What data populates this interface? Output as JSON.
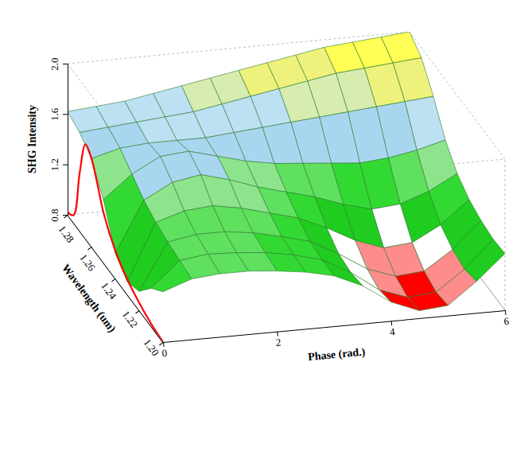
{
  "chart_data": {
    "type": "surface3d",
    "x_label": "Phase (rad.)",
    "y_label": "Wavelength (um)",
    "z_label": "SHG Intensity",
    "x": [
      0,
      0.5,
      1,
      1.5,
      2,
      2.5,
      3,
      3.5,
      4,
      4.5,
      5,
      5.5,
      6
    ],
    "y": [
      1.2,
      1.21,
      1.22,
      1.23,
      1.24,
      1.25,
      1.26,
      1.27,
      1.28
    ],
    "z": [
      [
        1.2,
        1.28,
        1.3,
        1.3,
        1.28,
        1.25,
        1.2,
        1.1,
        0.95,
        0.86,
        0.88,
        1.05,
        1.25
      ],
      [
        1.1,
        1.3,
        1.33,
        1.32,
        1.3,
        1.26,
        1.2,
        1.08,
        0.92,
        0.84,
        0.86,
        1.02,
        1.24
      ],
      [
        0.95,
        1.32,
        1.36,
        1.36,
        1.33,
        1.28,
        1.22,
        1.1,
        0.96,
        0.88,
        0.9,
        1.05,
        1.26
      ],
      [
        0.9,
        1.35,
        1.42,
        1.44,
        1.4,
        1.34,
        1.28,
        1.18,
        1.06,
        0.98,
        1.0,
        1.12,
        1.3
      ],
      [
        1.0,
        1.4,
        1.52,
        1.56,
        1.5,
        1.42,
        1.36,
        1.3,
        1.22,
        1.16,
        1.18,
        1.26,
        1.38
      ],
      [
        1.3,
        1.48,
        1.6,
        1.62,
        1.56,
        1.5,
        1.46,
        1.44,
        1.42,
        1.4,
        1.42,
        1.46,
        1.52
      ],
      [
        1.5,
        1.56,
        1.58,
        1.58,
        1.58,
        1.6,
        1.62,
        1.64,
        1.66,
        1.68,
        1.7,
        1.72,
        1.74
      ],
      [
        1.58,
        1.6,
        1.62,
        1.64,
        1.66,
        1.7,
        1.74,
        1.78,
        1.82,
        1.86,
        1.88,
        1.9,
        1.92
      ],
      [
        1.62,
        1.64,
        1.66,
        1.7,
        1.74,
        1.78,
        1.82,
        1.86,
        1.9,
        1.94,
        1.96,
        1.98,
        2.0
      ]
    ],
    "xlim": [
      0,
      6
    ],
    "xticks": [
      0,
      2,
      4,
      6
    ],
    "ylim": [
      1.2,
      1.28
    ],
    "yticks": [
      {
        "value": 1.2,
        "label": "1.20"
      },
      1.22,
      1.24,
      1.26,
      1.28
    ],
    "zlim": [
      0.8,
      2.0
    ],
    "zticks": [
      0.8,
      1.2,
      1.6,
      {
        "value": 2.0,
        "label": "2.0"
      }
    ],
    "projection": {
      "color": "#ff0000",
      "y": [
        1.2,
        1.21,
        1.22,
        1.23,
        1.24,
        1.25,
        1.255,
        1.26,
        1.265,
        1.27,
        1.275,
        1.28
      ],
      "values": [
        0.8,
        0.82,
        0.86,
        0.92,
        1.02,
        1.2,
        1.36,
        1.5,
        1.55,
        1.25,
        0.86,
        0.82
      ]
    }
  }
}
